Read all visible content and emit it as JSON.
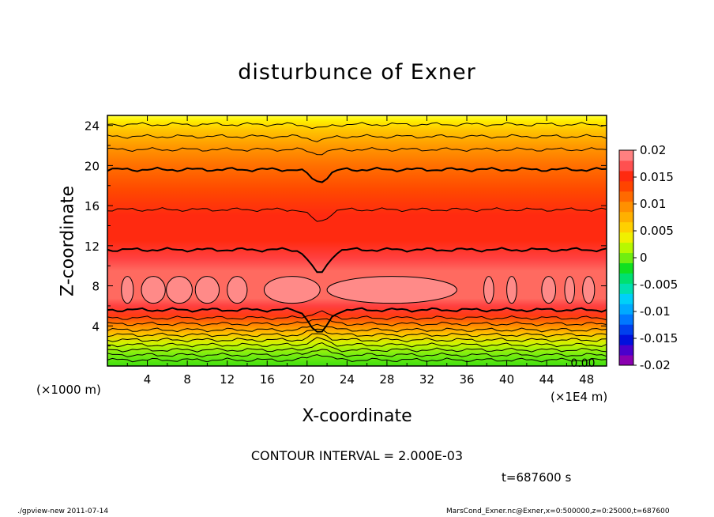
{
  "chart_data": {
    "type": "heatmap",
    "title": "disturbunce of Exner",
    "xlabel": "X-coordinate",
    "ylabel": "Z-coordinate",
    "x_unit_label_left": "(×1000 m)",
    "x_unit_label_right": "(×1E4 m)",
    "x_ticks": [
      "4",
      "8",
      "12",
      "16",
      "20",
      "24",
      "28",
      "32",
      "36",
      "40",
      "44",
      "48"
    ],
    "y_ticks": [
      "4",
      "8",
      "12",
      "16",
      "20",
      "24"
    ],
    "xlim": [
      0,
      50
    ],
    "ylim": [
      0,
      25
    ],
    "colorbar": {
      "labels": [
        "0.02",
        "0.015",
        "0.01",
        "0.005",
        "0",
        "-0.005",
        "-0.01",
        "-0.015",
        "-0.02"
      ],
      "range": [
        -0.02,
        0.02
      ],
      "colors": [
        "#8a00b0",
        "#4a00cc",
        "#0010dd",
        "#0040ee",
        "#0078ff",
        "#00aaff",
        "#00d0f8",
        "#00e0b0",
        "#00e070",
        "#10e020",
        "#70ee10",
        "#b8f800",
        "#f0f000",
        "#ffd000",
        "#ffb000",
        "#ff9000",
        "#ff6a00",
        "#ff4400",
        "#ff2a10",
        "#ff5050",
        "#ff8080"
      ]
    },
    "inside_label": "0.00",
    "contour_interval_text": "CONTOUR INTERVAL = 2.000E-03"
  },
  "time_label": "t=687600 s",
  "footer": {
    "left": "./gpview-new   2011-07-14",
    "right": "MarsCond_Exner.nc@Exner,x=0:500000,z=0:25000,t=687600"
  }
}
